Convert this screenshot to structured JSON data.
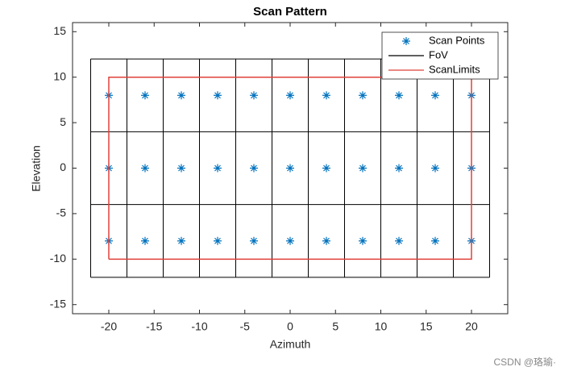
{
  "chart_data": {
    "type": "line",
    "title": "Scan Pattern",
    "xlabel": "Azimuth",
    "ylabel": "Elevation",
    "xlim": [
      -24,
      24
    ],
    "ylim": [
      -16,
      16
    ],
    "xticks": [
      -20,
      -15,
      -10,
      -5,
      0,
      5,
      10,
      15,
      20
    ],
    "yticks": [
      -15,
      -10,
      -5,
      0,
      5,
      10,
      15
    ],
    "legend": "northeast",
    "series": [
      {
        "name": "Scan Points",
        "color": "#0072bd",
        "marker": "*",
        "x": [
          -20,
          -16,
          -12,
          -8,
          -4,
          0,
          4,
          8,
          12,
          16,
          20,
          -20,
          -16,
          -12,
          -8,
          -4,
          0,
          4,
          8,
          12,
          16,
          20,
          -20,
          -16,
          -12,
          -8,
          -4,
          0,
          4,
          8,
          12,
          16,
          20
        ],
        "y": [
          8,
          8,
          8,
          8,
          8,
          8,
          8,
          8,
          8,
          8,
          8,
          0,
          0,
          0,
          0,
          0,
          0,
          0,
          0,
          0,
          0,
          0,
          -8,
          -8,
          -8,
          -8,
          -8,
          -8,
          -8,
          -8,
          -8,
          -8,
          -8
        ]
      },
      {
        "name": "FoV",
        "color": "#000000",
        "x": [
          -22,
          -22,
          null,
          -18,
          -18,
          null,
          -14,
          -14,
          null,
          -10,
          -10,
          null,
          -6,
          -6,
          null,
          -2,
          -2,
          null,
          2,
          2,
          null,
          6,
          6,
          null,
          10,
          10,
          null,
          14,
          14,
          null,
          18,
          18,
          null,
          22,
          22,
          null,
          -22,
          22,
          null,
          -22,
          22,
          null,
          -22,
          22,
          null,
          -22,
          22
        ],
        "y": [
          -12,
          12,
          null,
          -12,
          12,
          null,
          -12,
          12,
          null,
          -12,
          12,
          null,
          -12,
          12,
          null,
          -12,
          12,
          null,
          -12,
          12,
          null,
          -12,
          12,
          null,
          -12,
          12,
          null,
          -12,
          12,
          null,
          -12,
          12,
          null,
          -12,
          12,
          null,
          -12,
          -12,
          null,
          -4,
          -4,
          null,
          4,
          4,
          null,
          12,
          12
        ]
      },
      {
        "name": "ScanLimits",
        "color": "#e0403a",
        "x": [
          -20,
          20,
          20,
          -20,
          -20
        ],
        "y": [
          -10,
          -10,
          10,
          10,
          -10
        ]
      }
    ]
  },
  "watermark": "CSDN @珞瑜·"
}
